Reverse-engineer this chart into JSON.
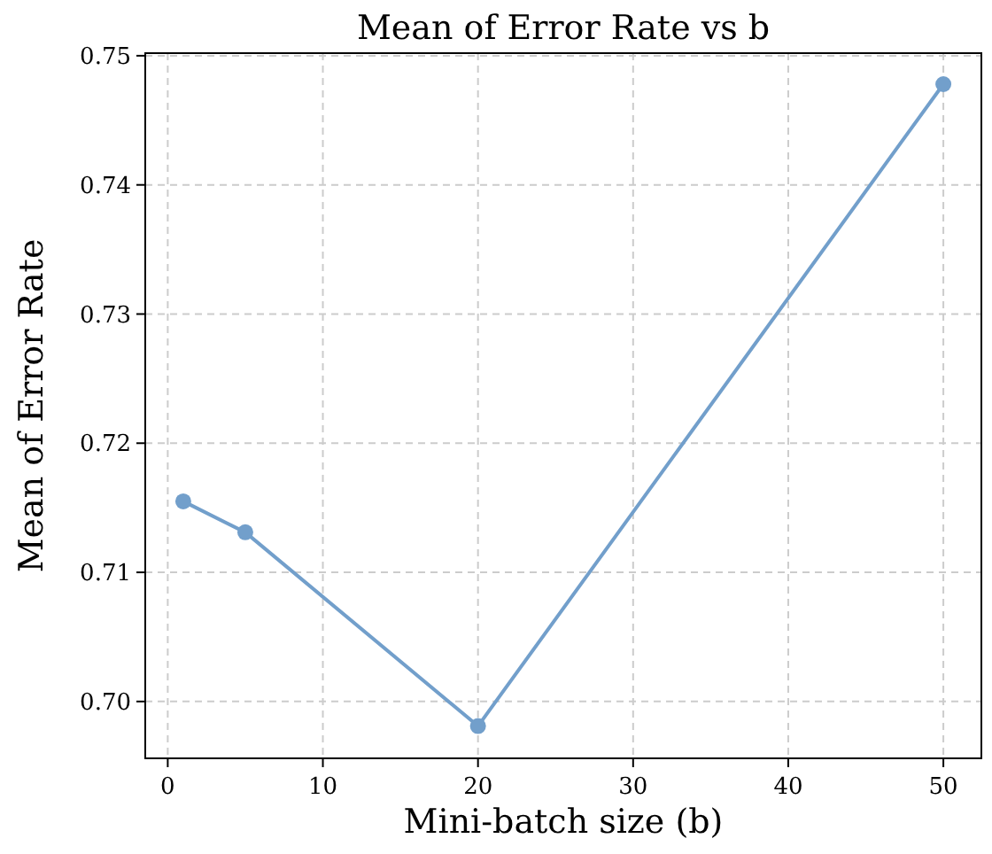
{
  "chart_data": {
    "type": "line",
    "title": "Mean of Error Rate vs b",
    "xlabel": "Mini-batch size (b)",
    "ylabel": "Mean of Error Rate",
    "x": [
      1,
      5,
      20,
      50
    ],
    "series": [
      {
        "color": "#729fcb",
        "values": [
          0.7155,
          0.7131,
          0.6981,
          0.7478
        ]
      }
    ],
    "xlim": [
      -1.45,
      52.45
    ],
    "xticks": [
      0,
      10,
      20,
      30,
      40,
      50
    ],
    "ylim": [
      0.6956,
      0.7502
    ],
    "yticks": [
      {
        "value": 0.7,
        "label": "0.70"
      },
      {
        "value": 0.71,
        "label": "0.71"
      },
      {
        "value": 0.72,
        "label": "0.72"
      },
      {
        "value": 0.73,
        "label": "0.73"
      },
      {
        "value": 0.74,
        "label": "0.74"
      },
      {
        "value": 0.75,
        "label": "0.75"
      }
    ],
    "grid": true,
    "marker": "circle",
    "line_style": "solid"
  }
}
